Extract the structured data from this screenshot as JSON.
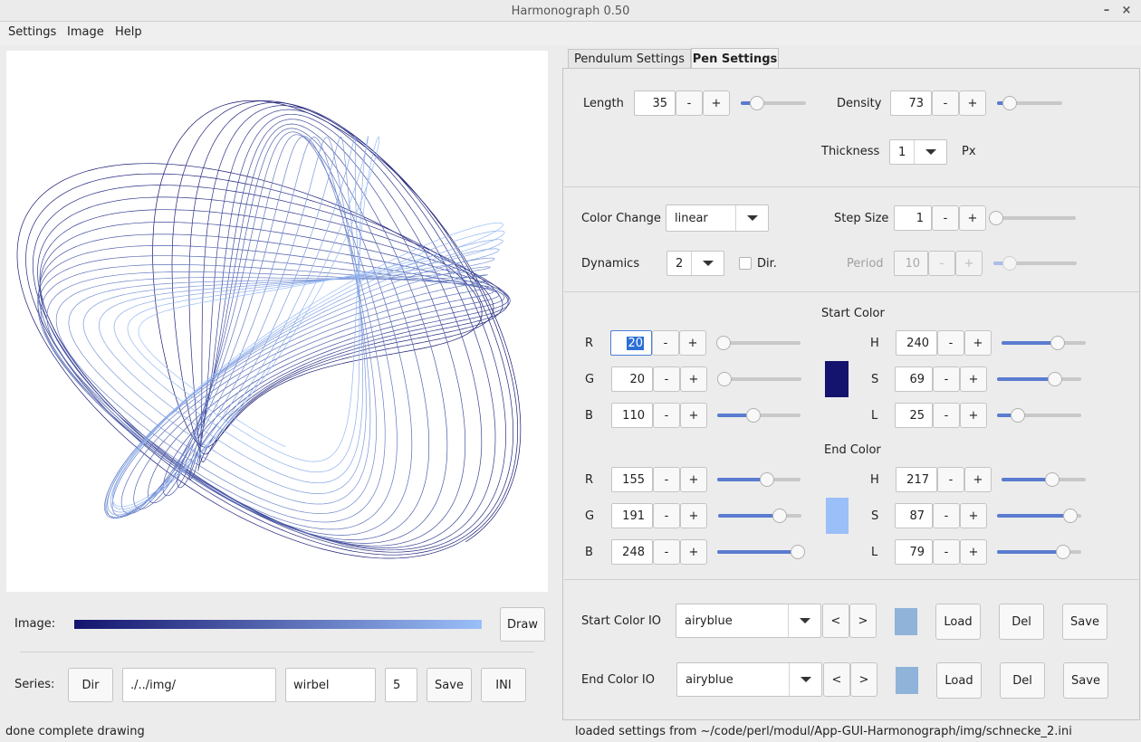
{
  "window": {
    "title": "Harmonograph 0.50",
    "minimize_glyph": "–",
    "maximize_glyph": "×"
  },
  "menu": [
    "Settings",
    "Image",
    "Help"
  ],
  "tabs": {
    "pendulum": "Pendulum Settings",
    "pen": "Pen Settings",
    "active": "Pen Settings"
  },
  "pen": {
    "length": {
      "label": "Length",
      "value": "35",
      "slider": 0.25
    },
    "density": {
      "label": "Density",
      "value": "73",
      "slider": 0.2
    },
    "thickness": {
      "label": "Thickness",
      "value": "1",
      "unit": "Px"
    },
    "color_change": {
      "label": "Color Change",
      "value": "linear"
    },
    "step_size": {
      "label": "Step Size",
      "value": "1",
      "slider": 0.02
    },
    "dynamics": {
      "label": "Dynamics",
      "value": "2"
    },
    "dir": {
      "label": "Dir.",
      "checked": false
    },
    "period": {
      "label": "Period",
      "value": "10",
      "slider": 0.2,
      "disabled": true
    }
  },
  "start_color": {
    "heading": "Start Color",
    "r": {
      "label": "R",
      "value": "20",
      "slider": 0.08
    },
    "g": {
      "label": "G",
      "value": "20",
      "slider": 0.08
    },
    "b": {
      "label": "B",
      "value": "110",
      "slider": 0.43
    },
    "h": {
      "label": "H",
      "value": "240",
      "slider": 0.67
    },
    "s": {
      "label": "S",
      "value": "69",
      "slider": 0.69
    },
    "l": {
      "label": "L",
      "value": "25",
      "slider": 0.25
    },
    "swatch": "#14146e"
  },
  "end_color": {
    "heading": "End Color",
    "r": {
      "label": "R",
      "value": "155",
      "slider": 0.6
    },
    "g": {
      "label": "G",
      "value": "191",
      "slider": 0.74
    },
    "b": {
      "label": "B",
      "value": "248",
      "slider": 0.97
    },
    "h": {
      "label": "H",
      "value": "217",
      "slider": 0.6
    },
    "s": {
      "label": "S",
      "value": "87",
      "slider": 0.87
    },
    "l": {
      "label": "L",
      "value": "79",
      "slider": 0.79
    },
    "swatch": "#9bbff8"
  },
  "color_io": {
    "start": {
      "label": "Start Color IO",
      "value": "airyblue"
    },
    "end": {
      "label": "End Color IO",
      "value": "airyblue"
    },
    "prev": "<",
    "next": ">",
    "load": "Load",
    "del": "Del",
    "save": "Save",
    "swatch": "#8fb3d9"
  },
  "bottom": {
    "image_label": "Image:",
    "draw": "Draw",
    "series_label": "Series:",
    "dir_btn": "Dir",
    "path": "./../img/",
    "name": "wirbel",
    "count": "5",
    "save": "Save",
    "ini": "INI"
  },
  "buttons": {
    "minus": "-",
    "plus": "+"
  },
  "status": {
    "left": "done complete drawing",
    "right": "loaded settings from ~/code/perl/modul/App-GUI-Harmonograph/img/schnecke_2.ini"
  },
  "colors": {
    "start": "#14146e",
    "end": "#9bbff8",
    "accent": "#5a7bd0"
  }
}
